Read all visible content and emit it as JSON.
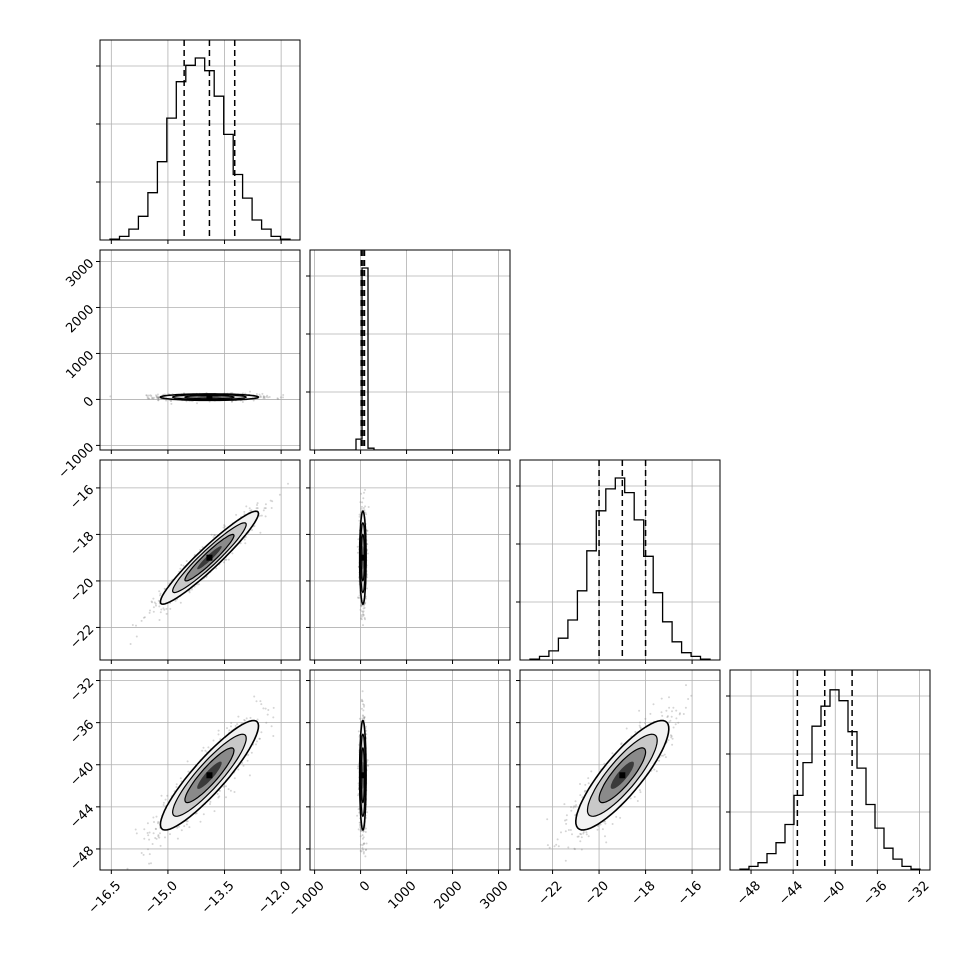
{
  "chart_data": {
    "type": "corner",
    "title": "",
    "grid": true,
    "parameters": [
      {
        "ticks": [
          -16.5,
          -15.0,
          -13.5,
          -12.0
        ],
        "tick_labels": [
          "−16.5",
          "−15.0",
          "−13.5",
          "−12.0"
        ],
        "range": [
          -16.8,
          -11.5
        ],
        "mean": -13.9,
        "sigma": 0.65,
        "quantiles": [
          -14.57,
          -13.9,
          -13.23
        ]
      },
      {
        "ticks": [
          -1000,
          0,
          1000,
          2000,
          3000
        ],
        "tick_labels": [
          "−1000",
          "0",
          "1000",
          "2000",
          "3000"
        ],
        "range": [
          -1100,
          3250
        ],
        "mean": 50,
        "sigma": 35,
        "quantiles": [
          15,
          50,
          85
        ]
      },
      {
        "ticks": [
          -22,
          -20,
          -18,
          -16
        ],
        "tick_labels": [
          "−22",
          "−20",
          "−18",
          "−16"
        ],
        "range": [
          -23.4,
          -14.8
        ],
        "mean": -19.0,
        "sigma": 1.0,
        "quantiles": [
          -20.0,
          -19.0,
          -18.0
        ]
      },
      {
        "ticks": [
          -48,
          -44,
          -40,
          -36,
          -32
        ],
        "tick_labels": [
          "−48",
          "−44",
          "−40",
          "−36",
          "−32"
        ],
        "range": [
          -50,
          -31
        ],
        "mean": -41.0,
        "sigma": 2.6,
        "quantiles": [
          -43.6,
          -41.0,
          -38.4
        ]
      }
    ],
    "correlations": {
      "0-1": 0.0,
      "0-2": 0.95,
      "0-3": 0.9,
      "1-2": 0.0,
      "1-3": 0.0,
      "2-3": 0.85
    },
    "histograms": [
      [
        0.005,
        0.02,
        0.06,
        0.13,
        0.26,
        0.43,
        0.67,
        0.87,
        0.96,
        1.0,
        0.93,
        0.79,
        0.58,
        0.36,
        0.23,
        0.11,
        0.06,
        0.02,
        0.005
      ],
      [
        0,
        0,
        0,
        0,
        0,
        0,
        0.06,
        1.0,
        0.01,
        0,
        0,
        0,
        0,
        0,
        0,
        0,
        0,
        0,
        0,
        0,
        0,
        0,
        0,
        0,
        0,
        0,
        0,
        0,
        0,
        0
      ],
      [
        0.005,
        0.02,
        0.05,
        0.12,
        0.22,
        0.38,
        0.6,
        0.82,
        0.94,
        1.0,
        0.92,
        0.77,
        0.57,
        0.37,
        0.21,
        0.1,
        0.04,
        0.02,
        0.005
      ],
      [
        0.005,
        0.02,
        0.04,
        0.09,
        0.15,
        0.25,
        0.41,
        0.59,
        0.79,
        0.9,
        0.99,
        0.93,
        0.76,
        0.56,
        0.36,
        0.23,
        0.12,
        0.06,
        0.02,
        0.005
      ]
    ]
  }
}
